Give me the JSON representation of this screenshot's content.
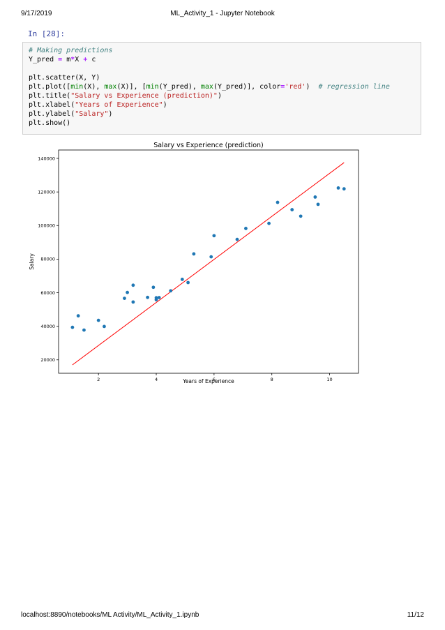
{
  "page_header": {
    "date": "9/17/2019",
    "title": "ML_Activity_1 - Jupyter Notebook"
  },
  "page_footer": {
    "url": "localhost:8890/notebooks/ML Activity/ML_Activity_1.ipynb",
    "page": "11/12"
  },
  "cell": {
    "prompt": "In [28]:",
    "lines": {
      "l1_comment": "# Making predictions",
      "l2_a": "Y_pred ",
      "l2_eq": "=",
      "l2_b": " m",
      "l2_mul": "*",
      "l2_c": "X ",
      "l2_plus": "+",
      "l2_d": " c",
      "l4": "plt.scatter(X, Y)",
      "l5_a": "plt.plot([",
      "l5_min1": "min",
      "l5_b": "(X), ",
      "l5_max1": "max",
      "l5_c": "(X)], [",
      "l5_min2": "min",
      "l5_d": "(Y_pred), ",
      "l5_max2": "max",
      "l5_e": "(Y_pred)], color",
      "l5_eq": "=",
      "l5_str": "'red'",
      "l5_f": ")  ",
      "l5_comment": "# regression line",
      "l6_a": "plt.title(",
      "l6_str": "\"Salary vs Experience (prediction)\"",
      "l6_b": ")",
      "l7_a": "plt.xlabel(",
      "l7_str": "\"Years of Experience\"",
      "l7_b": ")",
      "l8_a": "plt.ylabel(",
      "l8_str": "\"Salary\"",
      "l8_b": ")",
      "l9": "plt.show()"
    }
  },
  "chart_data": {
    "type": "scatter",
    "title": "Salary vs Experience (prediction)",
    "xlabel": "Years of Experience",
    "ylabel": "Salary",
    "xlim": [
      0.62,
      11.0
    ],
    "ylim": [
      12000,
      145000
    ],
    "xticks": [
      2,
      4,
      6,
      8,
      10
    ],
    "yticks": [
      20000,
      40000,
      60000,
      80000,
      100000,
      120000,
      140000
    ],
    "grid": false,
    "points": {
      "x": [
        1.1,
        1.3,
        1.5,
        2.0,
        2.2,
        2.9,
        3.0,
        3.2,
        3.2,
        3.7,
        3.9,
        4.0,
        4.0,
        4.1,
        4.5,
        4.9,
        5.1,
        5.3,
        5.9,
        6.0,
        6.8,
        7.1,
        7.9,
        8.2,
        8.7,
        9.0,
        9.5,
        9.6,
        10.3,
        10.5
      ],
      "y": [
        39343,
        46205,
        37731,
        43525,
        39891,
        56642,
        60150,
        54445,
        64445,
        57189,
        63218,
        55794,
        56957,
        57081,
        61111,
        67938,
        66029,
        83088,
        81363,
        93940,
        91738,
        98273,
        101302,
        113812,
        109431,
        105582,
        116969,
        112635,
        122391,
        121872
      ],
      "color": "#1f77b4"
    },
    "regression_line": {
      "x": [
        1.1,
        10.5
      ],
      "y": [
        17000,
        137500
      ],
      "color": "#ff0000"
    }
  }
}
